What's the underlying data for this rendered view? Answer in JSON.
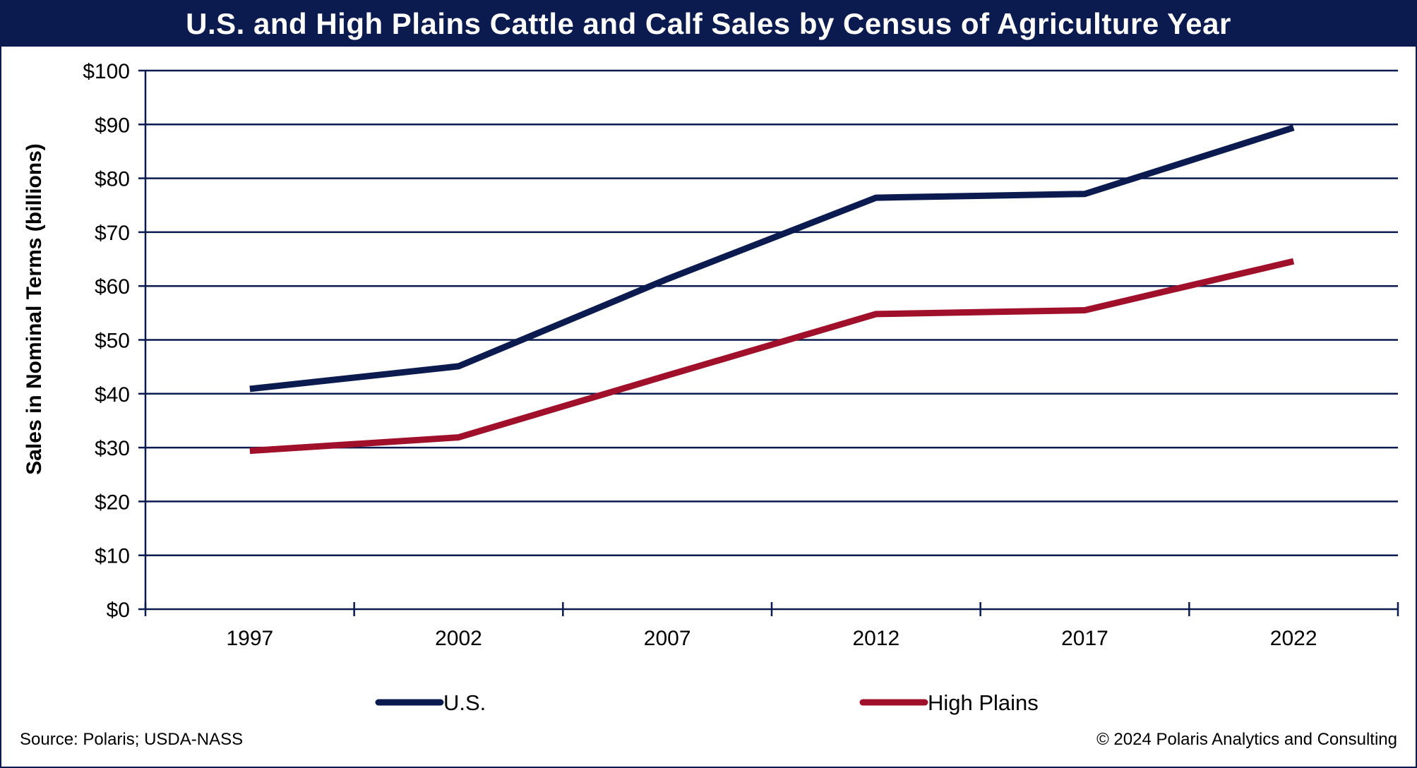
{
  "colors": {
    "navy": "#0b1a4f",
    "crimson": "#a0102a",
    "grid": "#0b1a4f"
  },
  "footer": {
    "source": "Source: Polaris; USDA-NASS",
    "copyright": "© 2024 Polaris Analytics and Consulting"
  },
  "chart_data": {
    "type": "line",
    "title": "U.S. and High Plains Cattle and Calf Sales by Census of Agriculture Year",
    "xlabel": "",
    "ylabel": "Sales in Nominal Terms (billions)",
    "categories": [
      "1997",
      "2002",
      "2007",
      "2012",
      "2017",
      "2022"
    ],
    "ylim": [
      0,
      100
    ],
    "yticks": [
      0,
      10,
      20,
      30,
      40,
      50,
      60,
      70,
      80,
      90,
      100
    ],
    "ytick_labels": [
      "$0",
      "$10",
      "$20",
      "$30",
      "$40",
      "$50",
      "$60",
      "$70",
      "$80",
      "$90",
      "$100"
    ],
    "grid": true,
    "legend_position": "bottom",
    "series": [
      {
        "name": "U.S.",
        "color": "#0b1a4f",
        "values": [
          40.9,
          45.1,
          61.3,
          76.4,
          77.1,
          89.4
        ]
      },
      {
        "name": "High Plains",
        "color": "#a0102a",
        "values": [
          29.4,
          31.9,
          43.4,
          54.8,
          55.5,
          64.6
        ]
      }
    ]
  }
}
